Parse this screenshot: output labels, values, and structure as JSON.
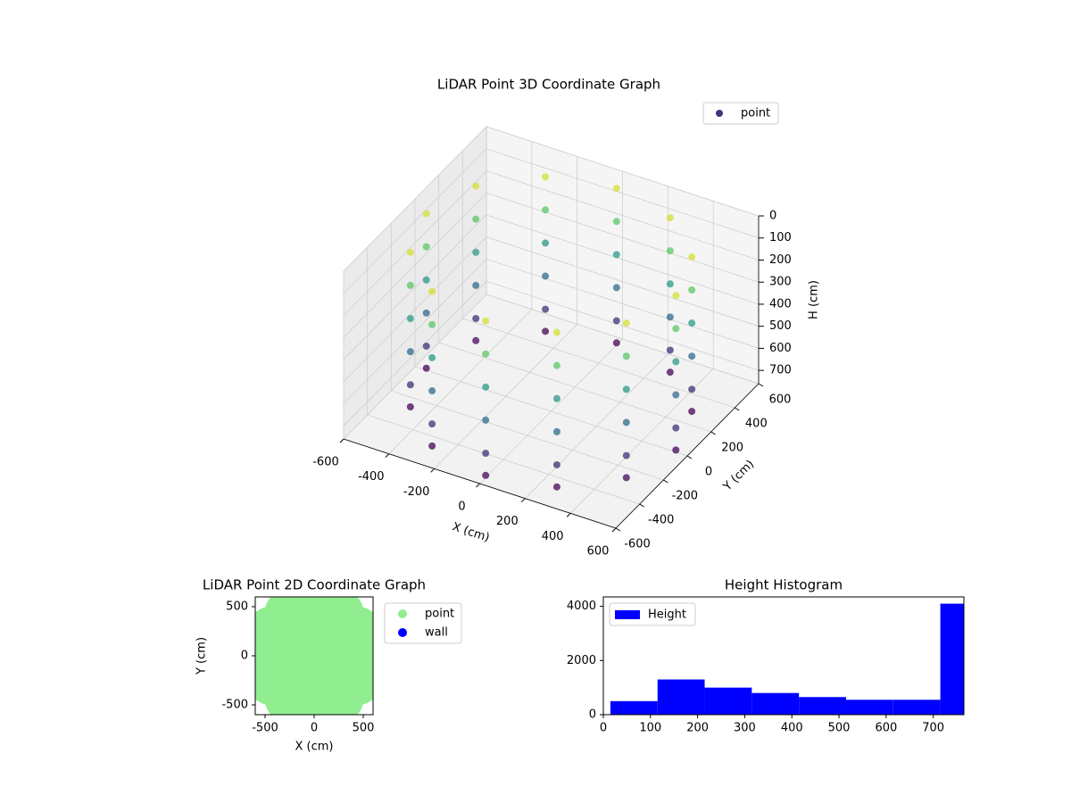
{
  "chart_data": [
    {
      "type": "scatter3d",
      "title": "LiDAR Point 3D Coordinate Graph",
      "xlabel": "X (cm)",
      "ylabel": "Y (cm)",
      "zlabel": "H (cm)",
      "xlim": [
        -600,
        600
      ],
      "ylim": [
        -600,
        600
      ],
      "zlim": [
        0,
        760
      ],
      "zinvert": true,
      "xticks": [
        -600,
        -400,
        -200,
        0,
        200,
        400,
        600
      ],
      "yticks": [
        -600,
        -400,
        -200,
        0,
        200,
        400,
        600
      ],
      "zticks": [
        0,
        100,
        200,
        300,
        400,
        500,
        600,
        700
      ],
      "colormap": [
        "#440154",
        "#3b528b",
        "#21918c",
        "#5ec962",
        "#fde725"
      ],
      "legend": "upper right",
      "grid": true,
      "series": [
        {
          "name": "point",
          "color": "#46327e",
          "x": [
            550,
            476,
            275,
            0,
            -275,
            -476,
            -550,
            -476,
            -275,
            0,
            275,
            476,
            550,
            476,
            275,
            0,
            -275,
            -476,
            -550,
            -476,
            -275,
            0,
            275,
            476,
            550,
            476,
            275,
            0,
            -275,
            -476,
            -550,
            -476,
            -275,
            0,
            275,
            476,
            550,
            476,
            275,
            0,
            -275,
            -476,
            -550,
            -476,
            -275,
            0,
            275,
            476,
            550,
            476,
            275,
            0,
            -275,
            -476,
            -550,
            -476,
            -275,
            0,
            275,
            476,
            550,
            476,
            275,
            0,
            -275,
            -476,
            -550,
            -476,
            -275,
            0,
            275,
            476
          ],
          "y": [
            0,
            275,
            476,
            550,
            476,
            275,
            0,
            -275,
            -476,
            -550,
            -476,
            -275,
            0,
            275,
            476,
            550,
            476,
            275,
            0,
            -275,
            -476,
            -550,
            -476,
            -275,
            0,
            275,
            476,
            550,
            476,
            275,
            0,
            -275,
            -476,
            -550,
            -476,
            -275,
            0,
            275,
            476,
            550,
            476,
            275,
            0,
            -275,
            -476,
            -550,
            -476,
            -275,
            0,
            275,
            476,
            550,
            476,
            275,
            0,
            -275,
            -476,
            -550,
            -476,
            -275,
            0,
            275,
            476,
            550,
            476,
            275,
            0,
            -275,
            -476,
            -550,
            -476,
            -275
          ],
          "z": [
            750,
            750,
            750,
            750,
            750,
            750,
            750,
            750,
            750,
            750,
            750,
            750,
            650,
            650,
            650,
            650,
            650,
            650,
            650,
            650,
            650,
            650,
            650,
            650,
            500,
            500,
            500,
            500,
            500,
            500,
            500,
            500,
            500,
            500,
            500,
            500,
            350,
            350,
            350,
            350,
            350,
            350,
            350,
            350,
            350,
            350,
            350,
            350,
            200,
            200,
            200,
            200,
            200,
            200,
            200,
            200,
            200,
            200,
            200,
            200,
            50,
            50,
            50,
            50,
            50,
            50,
            50,
            50,
            50,
            50,
            50,
            50
          ]
        }
      ]
    },
    {
      "type": "scatter",
      "title": "LiDAR Point 2D Coordinate Graph",
      "xlabel": "X (cm)",
      "ylabel": "Y (cm)",
      "xlim": [
        -600,
        600
      ],
      "ylim": [
        -600,
        600
      ],
      "xticks": [
        -500,
        0,
        500
      ],
      "yticks": [
        -500,
        0,
        500
      ],
      "legend": "outside right",
      "series": [
        {
          "name": "point",
          "color": "#90ee90",
          "x": [
            500,
            433,
            250,
            0,
            -250,
            -433,
            -500,
            -433,
            -250,
            0,
            250,
            433,
            250,
            125,
            -125,
            -250,
            -125,
            125,
            0
          ],
          "y": [
            0,
            250,
            433,
            500,
            433,
            250,
            0,
            -250,
            -433,
            -500,
            -433,
            -250,
            0,
            217,
            217,
            0,
            -217,
            -217,
            0
          ]
        },
        {
          "name": "wall",
          "color": "#0000ff",
          "x": [],
          "y": []
        }
      ]
    },
    {
      "type": "histogram",
      "title": "Height Histogram",
      "bins": [
        15,
        115,
        215,
        315,
        415,
        515,
        615,
        715,
        765
      ],
      "series": [
        {
          "name": "Height",
          "color": "#0000ff",
          "values": [
            500,
            1300,
            1000,
            800,
            650,
            550,
            550,
            4100
          ]
        }
      ],
      "xlim": [
        0,
        765
      ],
      "ylim": [
        0,
        4350
      ],
      "xticks": [
        0,
        100,
        200,
        300,
        400,
        500,
        600,
        700
      ],
      "yticks": [
        0,
        2000,
        4000
      ],
      "legend": "upper left"
    }
  ]
}
